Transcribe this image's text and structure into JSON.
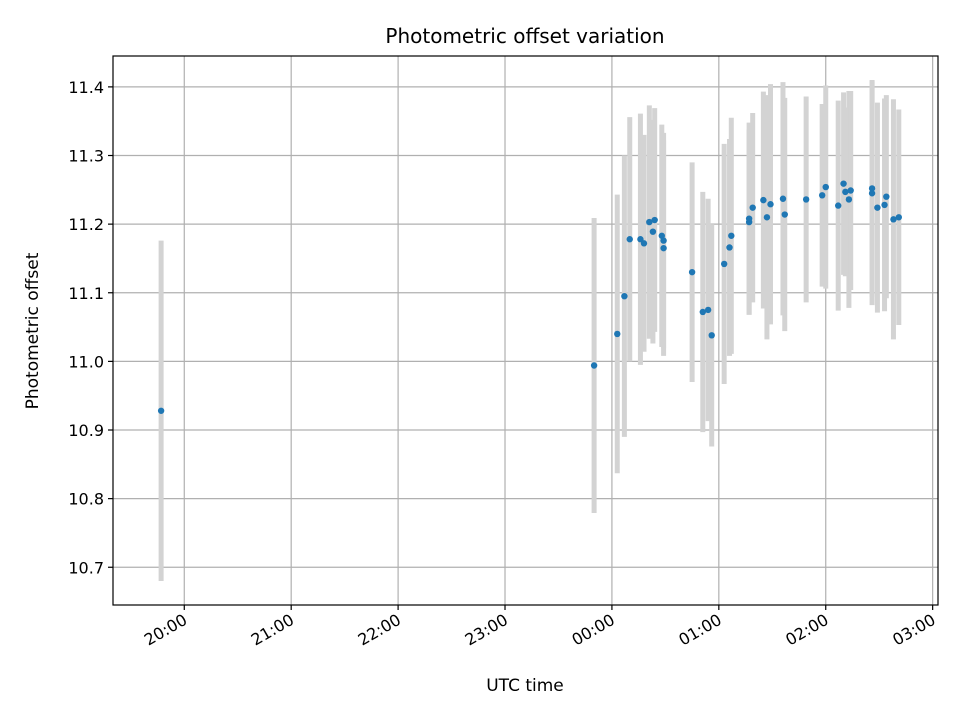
{
  "chart_data": {
    "type": "scatter",
    "title": "Photometric offset variation",
    "xlabel": "UTC time",
    "ylabel": "Photometric offset",
    "x_is_time": true,
    "xlim": [
      "19:20",
      "03:03"
    ],
    "ylim": [
      10.645,
      11.445
    ],
    "grid": true,
    "x_ticks": [
      "20:00",
      "21:00",
      "22:00",
      "23:00",
      "00:00",
      "01:00",
      "02:00",
      "03:00"
    ],
    "y_ticks": [
      10.7,
      10.8,
      10.9,
      11.0,
      11.1,
      11.2,
      11.3,
      11.4
    ],
    "colors": {
      "point": "#1f77b4",
      "errorbar": "#d3d3d3",
      "grid": "#b0b0b0"
    },
    "series": [
      {
        "points": [
          {
            "x": "19:47",
            "y": 10.928,
            "err": 0.248
          },
          {
            "x": "23:50",
            "y": 10.994,
            "err": 0.215
          },
          {
            "x": "00:03",
            "y": 11.04,
            "err": 0.203
          },
          {
            "x": "00:07",
            "y": 11.095,
            "err": 0.205
          },
          {
            "x": "00:10",
            "y": 11.178,
            "err": 0.178
          },
          {
            "x": "00:16",
            "y": 11.178,
            "err": 0.183
          },
          {
            "x": "00:18",
            "y": 11.172,
            "err": 0.158
          },
          {
            "x": "00:21",
            "y": 11.203,
            "err": 0.17
          },
          {
            "x": "00:23",
            "y": 11.189,
            "err": 0.163
          },
          {
            "x": "00:24",
            "y": 11.206,
            "err": 0.163
          },
          {
            "x": "00:28",
            "y": 11.183,
            "err": 0.162
          },
          {
            "x": "00:29",
            "y": 11.176,
            "err": 0.157
          },
          {
            "x": "00:29",
            "y": 11.165,
            "err": 0.157
          },
          {
            "x": "00:45",
            "y": 11.13,
            "err": 0.16
          },
          {
            "x": "00:51",
            "y": 11.072,
            "err": 0.175
          },
          {
            "x": "00:54",
            "y": 11.075,
            "err": 0.162
          },
          {
            "x": "00:56",
            "y": 11.038,
            "err": 0.162
          },
          {
            "x": "01:03",
            "y": 11.142,
            "err": 0.175
          },
          {
            "x": "01:06",
            "y": 11.166,
            "err": 0.158
          },
          {
            "x": "01:07",
            "y": 11.183,
            "err": 0.172
          },
          {
            "x": "01:17",
            "y": 11.203,
            "err": 0.135
          },
          {
            "x": "01:17",
            "y": 11.208,
            "err": 0.14
          },
          {
            "x": "01:19",
            "y": 11.224,
            "err": 0.138
          },
          {
            "x": "01:25",
            "y": 11.235,
            "err": 0.158
          },
          {
            "x": "01:27",
            "y": 11.21,
            "err": 0.178
          },
          {
            "x": "01:29",
            "y": 11.229,
            "err": 0.175
          },
          {
            "x": "01:36",
            "y": 11.237,
            "err": 0.17
          },
          {
            "x": "01:37",
            "y": 11.214,
            "err": 0.17
          },
          {
            "x": "01:49",
            "y": 11.236,
            "err": 0.15
          },
          {
            "x": "01:58",
            "y": 11.242,
            "err": 0.133
          },
          {
            "x": "02:00",
            "y": 11.254,
            "err": 0.148
          },
          {
            "x": "02:07",
            "y": 11.227,
            "err": 0.153
          },
          {
            "x": "02:10",
            "y": 11.259,
            "err": 0.133
          },
          {
            "x": "02:11",
            "y": 11.247,
            "err": 0.123
          },
          {
            "x": "02:13",
            "y": 11.236,
            "err": 0.158
          },
          {
            "x": "02:14",
            "y": 11.249,
            "err": 0.145
          },
          {
            "x": "02:26",
            "y": 11.252,
            "err": 0.158
          },
          {
            "x": "02:26",
            "y": 11.245,
            "err": 0.163
          },
          {
            "x": "02:29",
            "y": 11.224,
            "err": 0.153
          },
          {
            "x": "02:33",
            "y": 11.228,
            "err": 0.155
          },
          {
            "x": "02:34",
            "y": 11.24,
            "err": 0.148
          },
          {
            "x": "02:38",
            "y": 11.207,
            "err": 0.175
          },
          {
            "x": "02:41",
            "y": 11.21,
            "err": 0.157
          }
        ]
      }
    ]
  }
}
